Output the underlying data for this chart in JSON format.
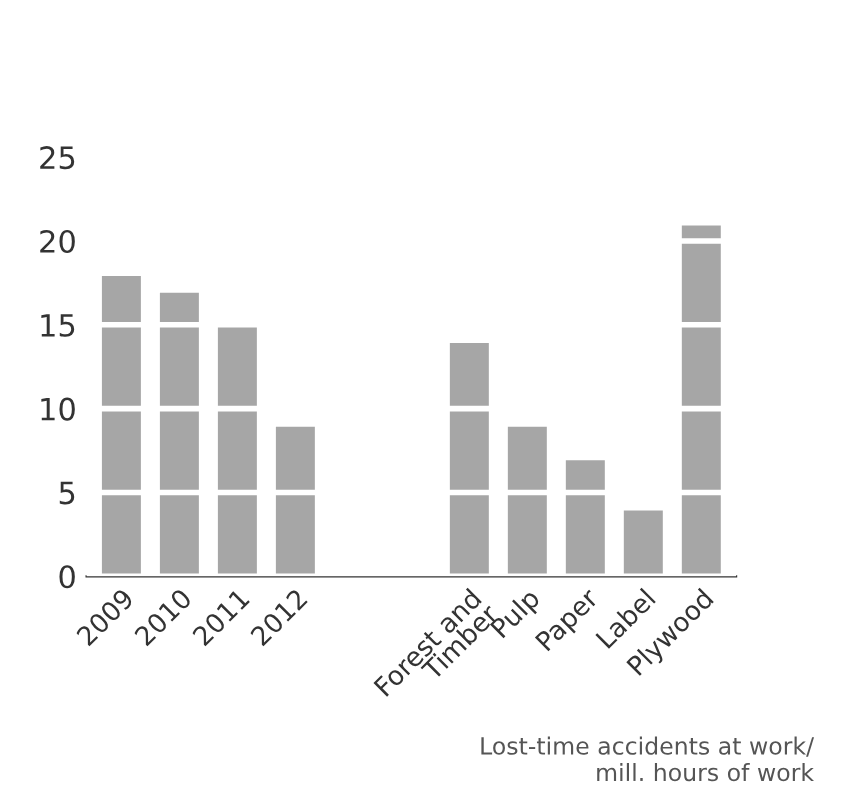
{
  "chart_data": {
    "type": "bar",
    "categories": [
      "2009",
      "2010",
      "2011",
      "2012",
      null,
      null,
      "Forest and\nTimber",
      "Pulp",
      "Paper",
      "Label",
      "Plywood"
    ],
    "values": [
      18,
      17,
      15,
      9,
      null,
      null,
      14,
      9,
      7,
      4,
      21
    ],
    "color": "#a6a6a6",
    "ylim": [
      0,
      25
    ],
    "yticks": [
      0,
      5,
      10,
      15,
      20,
      25
    ],
    "grid": "y",
    "annotations": [
      "Lost-time accidents at work/\nmill. hours of work"
    ]
  }
}
